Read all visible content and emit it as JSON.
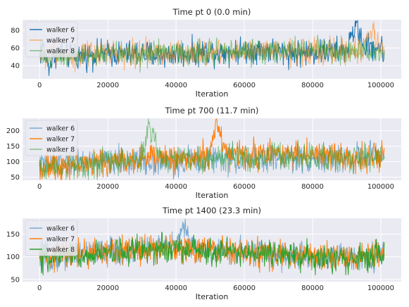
{
  "chart_data": [
    {
      "type": "line",
      "title": "Time pt 0 (0.0 min)",
      "xlabel": "Iteration",
      "ylabel": "",
      "xlim": [
        -5000,
        106000
      ],
      "ylim": [
        25,
        92
      ],
      "x_ticks": [
        0,
        20000,
        40000,
        60000,
        80000,
        100000
      ],
      "y_ticks": [
        40,
        60,
        80
      ],
      "grid": true,
      "legend": "top-left",
      "series": [
        {
          "name": "walker 6",
          "color": "#1f77b4",
          "alpha": 1.0,
          "x": [
            0,
            1000,
            2000,
            3000,
            4000,
            5000,
            10000,
            15000,
            20000,
            25000,
            30000,
            35000,
            40000,
            45000,
            50000,
            55000,
            60000,
            65000,
            70000,
            75000,
            80000,
            85000,
            90000,
            93000,
            95000,
            100000,
            101000
          ],
          "y": [
            52,
            62,
            44,
            38,
            50,
            55,
            50,
            52,
            54,
            53,
            54,
            52,
            53,
            54,
            56,
            55,
            57,
            58,
            56,
            54,
            55,
            56,
            57,
            89,
            60,
            62,
            50
          ]
        },
        {
          "name": "walker 7",
          "color": "#ff7f0e",
          "alpha": 0.55,
          "x": [
            0,
            1000,
            2000,
            3000,
            4000,
            5000,
            10000,
            15000,
            20000,
            25000,
            30000,
            35000,
            40000,
            45000,
            50000,
            55000,
            60000,
            65000,
            70000,
            75000,
            80000,
            85000,
            90000,
            95000,
            97000,
            100000,
            101000
          ],
          "y": [
            50,
            55,
            46,
            52,
            58,
            54,
            52,
            51,
            55,
            54,
            53,
            55,
            56,
            52,
            54,
            57,
            55,
            56,
            54,
            55,
            56,
            55,
            56,
            58,
            80,
            57,
            52
          ]
        },
        {
          "name": "walker 8",
          "color": "#2ca02c",
          "alpha": 0.55,
          "x": [
            0,
            1000,
            2000,
            3000,
            4000,
            5000,
            10000,
            15000,
            20000,
            25000,
            30000,
            35000,
            40000,
            45000,
            50000,
            55000,
            60000,
            65000,
            70000,
            75000,
            80000,
            85000,
            90000,
            95000,
            100000,
            101000
          ],
          "y": [
            51,
            54,
            50,
            48,
            52,
            53,
            51,
            52,
            53,
            54,
            52,
            54,
            55,
            53,
            55,
            56,
            54,
            57,
            55,
            56,
            57,
            56,
            55,
            56,
            58,
            53
          ]
        }
      ]
    },
    {
      "type": "line",
      "title": "Time pt 700 (11.7 min)",
      "xlabel": "Iteration",
      "ylabel": "",
      "xlim": [
        -5000,
        106000
      ],
      "ylim": [
        40,
        240
      ],
      "x_ticks": [
        0,
        20000,
        40000,
        60000,
        80000,
        100000
      ],
      "y_ticks": [
        50,
        100,
        150,
        200
      ],
      "grid": true,
      "legend": "top-left",
      "series": [
        {
          "name": "walker 6",
          "color": "#1f77b4",
          "alpha": 0.55,
          "x": [
            0,
            5000,
            10000,
            15000,
            20000,
            25000,
            30000,
            35000,
            40000,
            45000,
            50000,
            55000,
            60000,
            65000,
            70000,
            75000,
            80000,
            85000,
            90000,
            95000,
            100000,
            101000
          ],
          "y": [
            85,
            95,
            92,
            96,
            98,
            100,
            102,
            100,
            98,
            104,
            106,
            108,
            105,
            110,
            108,
            112,
            110,
            108,
            112,
            114,
            116,
            110
          ]
        },
        {
          "name": "walker 7",
          "color": "#ff7f0e",
          "alpha": 1.0,
          "x": [
            0,
            5000,
            10000,
            15000,
            20000,
            25000,
            30000,
            35000,
            40000,
            45000,
            50000,
            52000,
            55000,
            60000,
            65000,
            70000,
            75000,
            80000,
            85000,
            90000,
            95000,
            100000,
            101000
          ],
          "y": [
            80,
            88,
            92,
            95,
            100,
            105,
            110,
            115,
            105,
            112,
            120,
            232,
            118,
            125,
            122,
            130,
            128,
            120,
            118,
            115,
            112,
            118,
            110
          ]
        },
        {
          "name": "walker 8",
          "color": "#2ca02c",
          "alpha": 0.55,
          "x": [
            0,
            5000,
            10000,
            15000,
            20000,
            25000,
            30000,
            32000,
            35000,
            40000,
            45000,
            50000,
            55000,
            60000,
            65000,
            70000,
            75000,
            80000,
            85000,
            90000,
            95000,
            100000,
            101000
          ],
          "y": [
            82,
            90,
            94,
            96,
            98,
            102,
            108,
            222,
            112,
            106,
            110,
            108,
            112,
            115,
            112,
            118,
            116,
            114,
            112,
            110,
            112,
            115,
            108
          ]
        }
      ]
    },
    {
      "type": "line",
      "title": "Time pt 1400 (23.3 min)",
      "xlabel": "Iteration",
      "ylabel": "",
      "xlim": [
        -5000,
        106000
      ],
      "ylim": [
        45,
        185
      ],
      "x_ticks": [
        0,
        20000,
        40000,
        60000,
        80000,
        100000
      ],
      "y_ticks": [
        50,
        100,
        150
      ],
      "grid": true,
      "legend": "top-left",
      "series": [
        {
          "name": "walker 6",
          "color": "#1f77b4",
          "alpha": 0.55,
          "x": [
            0,
            5000,
            10000,
            15000,
            20000,
            25000,
            30000,
            35000,
            40000,
            42000,
            45000,
            50000,
            55000,
            60000,
            65000,
            70000,
            75000,
            80000,
            85000,
            90000,
            95000,
            100000,
            101000
          ],
          "y": [
            95,
            100,
            105,
            108,
            110,
            112,
            115,
            118,
            120,
            178,
            115,
            112,
            110,
            108,
            106,
            104,
            102,
            100,
            98,
            100,
            102,
            104,
            100
          ]
        },
        {
          "name": "walker 7",
          "color": "#ff7f0e",
          "alpha": 1.0,
          "x": [
            0,
            5000,
            10000,
            15000,
            20000,
            25000,
            30000,
            35000,
            40000,
            45000,
            50000,
            55000,
            60000,
            65000,
            70000,
            75000,
            80000,
            85000,
            90000,
            95000,
            100000,
            101000
          ],
          "y": [
            98,
            102,
            106,
            108,
            112,
            114,
            116,
            118,
            120,
            118,
            114,
            112,
            108,
            106,
            104,
            102,
            100,
            98,
            100,
            102,
            104,
            100
          ]
        },
        {
          "name": "walker 8",
          "color": "#2ca02c",
          "alpha": 1.0,
          "x": [
            0,
            5000,
            10000,
            15000,
            20000,
            25000,
            30000,
            35000,
            40000,
            45000,
            50000,
            55000,
            60000,
            65000,
            70000,
            75000,
            80000,
            85000,
            90000,
            95000,
            100000,
            101000
          ],
          "y": [
            96,
            101,
            104,
            107,
            111,
            113,
            117,
            119,
            121,
            119,
            113,
            111,
            107,
            105,
            103,
            101,
            99,
            97,
            99,
            101,
            103,
            99
          ]
        }
      ]
    }
  ]
}
